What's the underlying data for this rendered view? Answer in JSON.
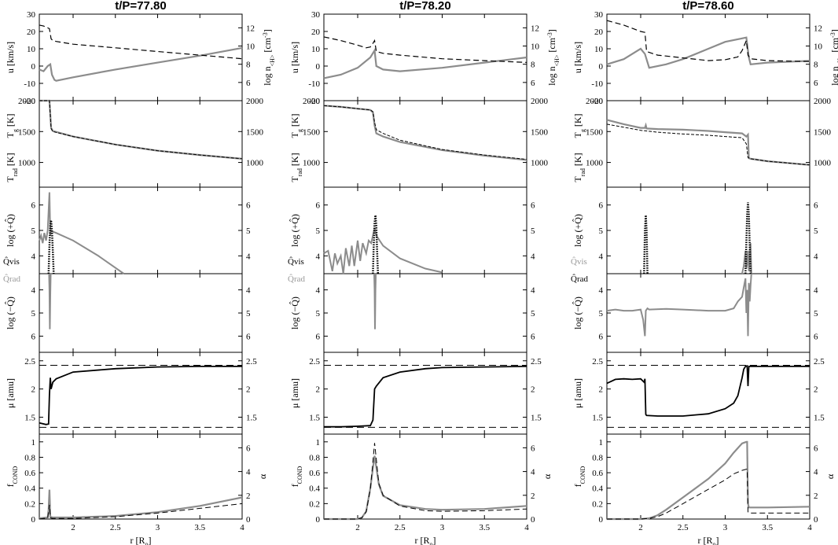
{
  "chart_data": {
    "type": "line",
    "layout": "3 columns x 6 stacked panels, shared x axis per column",
    "x_axis": {
      "label": "r [R",
      "label_sub": "0",
      "label_end": "]",
      "range": [
        1.6,
        4.0
      ],
      "ticks": [
        "2",
        "2.5",
        "3",
        "3.5",
        "4"
      ]
    },
    "rows": [
      {
        "key": "u",
        "left_label": "u [km/s]",
        "left_range": [
          -20,
          30
        ],
        "left_ticks": [
          "30",
          "20",
          "10",
          "0",
          "-10",
          "-20"
        ],
        "right_label": "log n",
        "right_label_sub": "<H>",
        "right_label_end": " [cm",
        "right_label_sup": "-3",
        "right_label_close": "]",
        "right_range": [
          4,
          13.5
        ],
        "right_ticks": [
          "12",
          "10",
          "8",
          "6"
        ]
      },
      {
        "key": "T",
        "top_label": "T",
        "top_label_sub": "g",
        "top_label_end": " [K]",
        "bottom_label": "T",
        "bottom_label_sub": "rad",
        "bottom_label_end": " [K]",
        "left_range": [
          600,
          2000
        ],
        "left_ticks": [
          "2000",
          "1500",
          "1000"
        ],
        "right_ticks": [
          "2000",
          "1500",
          "1000"
        ]
      },
      {
        "key": "qpos",
        "left_label": "log (+Q̂)",
        "left_range": [
          3.3,
          6.7
        ],
        "left_ticks": [
          "6",
          "5",
          "4"
        ],
        "right_ticks": [
          "6",
          "5",
          "4"
        ],
        "corner_label": "Q̂vis"
      },
      {
        "key": "qneg",
        "left_label": "log (−Q̂)",
        "left_range": [
          3.3,
          6.7
        ],
        "inverted": true,
        "left_ticks": [
          "4",
          "5",
          "6"
        ],
        "right_ticks": [
          "4",
          "5",
          "6"
        ],
        "corner_label": "Q̂rad"
      },
      {
        "key": "mu",
        "left_label": "μ [amu]",
        "left_range": [
          1.2,
          2.65
        ],
        "left_ticks": [
          "2.5",
          "2",
          "1.5"
        ],
        "right_ticks": [
          "2.5",
          "2",
          "1.5"
        ]
      },
      {
        "key": "fcond",
        "left_label": "f",
        "left_label_sub": "COND",
        "left_range": [
          0,
          1.1
        ],
        "left_ticks": [
          "1",
          "0.8",
          "0.6",
          "0.4",
          "0.2",
          "0"
        ],
        "right_label": "α",
        "right_range": [
          0,
          7.15
        ],
        "right_ticks": [
          "6",
          "4",
          "2",
          "0"
        ]
      }
    ],
    "columns": [
      {
        "title": "t/P=77.80",
        "legend_colors": {
          "qvis": "#000000",
          "qrad": "#999999"
        },
        "u": {
          "r": [
            1.6,
            1.65,
            1.7,
            1.73,
            1.75,
            1.78,
            1.8,
            2.0,
            2.5,
            3.0,
            3.5,
            4.0
          ],
          "values": [
            -2,
            -3,
            0,
            1,
            -5,
            -8,
            -8.5,
            -6.5,
            -2,
            2,
            6,
            10.5
          ]
        },
        "n": {
          "r": [
            1.6,
            1.65,
            1.7,
            1.72,
            1.74,
            1.76,
            1.8,
            2.0,
            2.5,
            3.0,
            3.5,
            4.0
          ],
          "values": [
            12.3,
            12.2,
            12.0,
            11.9,
            10.8,
            10.6,
            10.5,
            10.2,
            9.8,
            9.4,
            9.0,
            8.6
          ]
        },
        "Tg": {
          "r": [
            1.6,
            1.72,
            1.74,
            1.76,
            2.0,
            2.5,
            3.0,
            3.5,
            4.0
          ],
          "values": [
            2000,
            2000,
            1560,
            1510,
            1420,
            1290,
            1190,
            1120,
            1060
          ]
        },
        "Trad": {
          "r": [
            1.6,
            1.72,
            1.74,
            1.76,
            2.0,
            2.5,
            3.0,
            3.5,
            4.0
          ],
          "values": [
            2000,
            2000,
            1550,
            1500,
            1420,
            1290,
            1190,
            1120,
            1060
          ]
        },
        "qvis": {
          "r": [
            1.71,
            1.72,
            1.73,
            1.74,
            1.75,
            1.76,
            1.77
          ],
          "values": [
            3.3,
            4.4,
            5.2,
            5.4,
            5.0,
            4.2,
            3.3
          ]
        },
        "qpos_grey": {
          "r": [
            1.6,
            1.62,
            1.64,
            1.66,
            1.68,
            1.7,
            1.72,
            1.73,
            1.74,
            1.76,
            1.8,
            2.0,
            2.3,
            2.6
          ],
          "values": [
            4.6,
            4.8,
            4.5,
            4.9,
            4.6,
            5.0,
            6.5,
            4.8,
            5.0,
            4.95,
            4.9,
            4.6,
            4.0,
            3.3
          ]
        },
        "qneg": {
          "r": [
            1.715,
            1.72,
            1.725,
            1.73,
            1.735
          ],
          "values": [
            3.3,
            4.0,
            5.7,
            4.2,
            3.3
          ]
        },
        "mu": {
          "r": [
            1.6,
            1.68,
            1.71,
            1.72,
            1.73,
            1.74,
            1.76,
            1.8,
            2.0,
            2.5,
            3.0,
            3.5,
            4.0
          ],
          "values": [
            1.4,
            1.37,
            1.38,
            1.9,
            2.2,
            2.0,
            2.12,
            2.18,
            2.3,
            2.36,
            2.39,
            2.4,
            2.4
          ]
        },
        "mu_lines": [
          2.42,
          1.32
        ],
        "fcond": {
          "r": [
            1.6,
            1.7,
            1.71,
            1.72,
            1.73,
            1.76,
            2.0,
            2.5,
            3.0,
            3.5,
            4.0
          ],
          "values": [
            0.01,
            0.02,
            0.12,
            0.38,
            0.03,
            0.02,
            0.02,
            0.04,
            0.09,
            0.17,
            0.28
          ]
        },
        "alpha": {
          "r": [
            1.6,
            1.7,
            1.71,
            1.72,
            1.73,
            1.76,
            2.0,
            2.5,
            3.0,
            3.5,
            4.0
          ],
          "values": [
            0,
            0.1,
            0.6,
            1.2,
            0.1,
            0.05,
            0.05,
            0.2,
            0.5,
            0.9,
            1.3
          ]
        }
      },
      {
        "title": "t/P=78.20",
        "legend_colors": {
          "qvis": "#000000",
          "qrad": "#999999"
        },
        "u": {
          "r": [
            1.6,
            1.8,
            2.0,
            2.15,
            2.2,
            2.22,
            2.3,
            2.5,
            3.0,
            3.5,
            4.0
          ],
          "values": [
            -7,
            -5,
            -1,
            5,
            9,
            0,
            -2,
            -3,
            -1,
            2,
            5
          ]
        },
        "n": {
          "r": [
            1.6,
            1.8,
            2.0,
            2.1,
            2.15,
            2.18,
            2.2,
            2.22,
            2.3,
            2.5,
            3.0,
            3.5,
            4.0
          ],
          "values": [
            11.0,
            10.6,
            10.1,
            9.8,
            9.9,
            10.3,
            10.6,
            9.4,
            9.2,
            9.0,
            8.6,
            8.4,
            8.2
          ]
        },
        "Tg": {
          "r": [
            1.6,
            1.8,
            2.0,
            2.15,
            2.18,
            2.2,
            2.22,
            2.3,
            2.5,
            3.0,
            3.5,
            4.0
          ],
          "values": [
            1920,
            1900,
            1870,
            1850,
            1810,
            1600,
            1470,
            1420,
            1330,
            1200,
            1110,
            1040
          ]
        },
        "Trad": {
          "r": [
            1.6,
            1.8,
            2.0,
            2.15,
            2.18,
            2.2,
            2.22,
            2.3,
            2.5,
            3.0,
            3.5,
            4.0
          ],
          "values": [
            1920,
            1900,
            1870,
            1850,
            1820,
            1650,
            1530,
            1470,
            1360,
            1210,
            1120,
            1050
          ]
        },
        "qvis": {
          "r": [
            2.18,
            2.19,
            2.2,
            2.21,
            2.22,
            2.23,
            2.24
          ],
          "values": [
            3.3,
            4.4,
            5.3,
            5.6,
            5.2,
            4.2,
            3.3
          ]
        },
        "qpos_grey": {
          "r": [
            1.6,
            1.65,
            1.7,
            1.73,
            1.76,
            1.8,
            1.83,
            1.86,
            1.9,
            1.93,
            1.96,
            2.0,
            2.03,
            2.06,
            2.1,
            2.13,
            2.16,
            2.2,
            2.22,
            2.3,
            2.5,
            2.8,
            3.0
          ],
          "values": [
            4.1,
            4.2,
            3.4,
            4.1,
            3.7,
            4.0,
            3.3,
            4.3,
            3.6,
            4.4,
            3.6,
            4.6,
            3.8,
            4.5,
            4.1,
            4.6,
            4.5,
            5.1,
            4.8,
            4.4,
            3.9,
            3.5,
            3.35
          ]
        },
        "qneg": {
          "r": [
            2.195,
            2.2,
            2.205,
            2.21,
            2.215
          ],
          "values": [
            3.3,
            4.0,
            5.7,
            4.0,
            3.3
          ]
        },
        "mu": {
          "r": [
            1.6,
            1.8,
            2.0,
            2.15,
            2.18,
            2.2,
            2.22,
            2.3,
            2.5,
            2.8,
            3.0,
            3.5,
            4.0
          ],
          "values": [
            1.33,
            1.33,
            1.34,
            1.35,
            1.45,
            2.0,
            2.05,
            2.2,
            2.3,
            2.36,
            2.38,
            2.39,
            2.4
          ]
        },
        "mu_lines": [
          2.42,
          1.32
        ],
        "fcond": {
          "r": [
            1.6,
            2.0,
            2.05,
            2.1,
            2.15,
            2.2,
            2.25,
            2.3,
            2.5,
            2.8,
            3.0,
            3.5,
            4.0
          ],
          "values": [
            0,
            0.0,
            0.02,
            0.1,
            0.4,
            0.82,
            0.45,
            0.3,
            0.18,
            0.13,
            0.12,
            0.13,
            0.17
          ]
        },
        "alpha": {
          "r": [
            1.6,
            2.0,
            2.05,
            2.1,
            2.15,
            2.2,
            2.25,
            2.3,
            2.5,
            2.8,
            3.0,
            3.5,
            4.0
          ],
          "values": [
            0,
            0.0,
            0.1,
            0.6,
            2.5,
            6.4,
            3.0,
            2.0,
            1.1,
            0.7,
            0.65,
            0.7,
            0.85
          ]
        }
      },
      {
        "title": "t/P=78.60",
        "legend_colors": {
          "qvis": "#999999",
          "qrad": "#000000"
        },
        "u": {
          "r": [
            1.6,
            1.8,
            2.0,
            2.05,
            2.1,
            2.3,
            2.5,
            2.8,
            3.0,
            3.2,
            3.25,
            3.28,
            3.3,
            3.5,
            4.0
          ],
          "values": [
            1,
            4,
            10,
            7,
            -1,
            1,
            4,
            10,
            14,
            16,
            16.5,
            5,
            1,
            2,
            3
          ]
        },
        "n": {
          "r": [
            1.6,
            1.8,
            2.0,
            2.05,
            2.07,
            2.2,
            2.5,
            2.8,
            3.0,
            3.15,
            3.2,
            3.25,
            3.27,
            3.3,
            3.5,
            4.0
          ],
          "values": [
            12.8,
            12.3,
            11.6,
            11.5,
            9.4,
            9.0,
            8.7,
            8.4,
            8.5,
            8.8,
            9.5,
            10.6,
            9.0,
            8.6,
            8.4,
            8.3
          ]
        },
        "Tg": {
          "r": [
            1.6,
            1.8,
            2.0,
            2.05,
            2.06,
            2.07,
            2.2,
            2.5,
            2.8,
            3.0,
            3.2,
            3.25,
            3.27,
            3.28,
            3.3,
            3.5,
            4.0
          ],
          "values": [
            1690,
            1620,
            1560,
            1560,
            1600,
            1550,
            1540,
            1530,
            1510,
            1490,
            1470,
            1420,
            1450,
            1070,
            1060,
            1020,
            960
          ]
        },
        "Trad": {
          "r": [
            1.6,
            1.8,
            2.0,
            2.2,
            2.5,
            2.8,
            3.0,
            3.2,
            3.25,
            3.27,
            3.3,
            3.5,
            4.0
          ],
          "values": [
            1620,
            1570,
            1520,
            1490,
            1460,
            1440,
            1420,
            1400,
            1300,
            1080,
            1060,
            1020,
            960
          ]
        },
        "qvis": {
          "r": [
            2.04,
            2.05,
            2.06,
            2.07,
            2.08
          ],
          "values": [
            3.3,
            5.0,
            5.6,
            5.0,
            3.3
          ]
        },
        "qvis2": {
          "r": [
            3.24,
            3.25,
            3.26,
            3.27,
            3.28,
            3.29,
            3.3
          ],
          "values": [
            3.3,
            4.5,
            5.6,
            6.1,
            5.6,
            4.4,
            3.3
          ]
        },
        "qpos_grey": {
          "r": [
            3.2,
            3.22,
            3.24,
            3.25,
            3.26,
            3.27,
            3.28,
            3.29,
            3.3,
            3.31
          ],
          "values": [
            3.3,
            3.6,
            4.2,
            3.5,
            3.7,
            4.2,
            3.4,
            3.9,
            4.5,
            3.3
          ]
        },
        "qneg": {
          "r": [
            1.6,
            1.7,
            1.8,
            1.9,
            2.0,
            2.03,
            2.05,
            2.06,
            2.08,
            2.1,
            2.3,
            2.5,
            2.8,
            3.0,
            3.1,
            3.15,
            3.2,
            3.22,
            3.24,
            3.25,
            3.26,
            3.27,
            3.28,
            3.29,
            3.3,
            3.31
          ],
          "values": [
            4.9,
            4.85,
            4.9,
            4.9,
            4.85,
            5.3,
            6.0,
            4.9,
            4.8,
            4.85,
            4.82,
            4.85,
            4.9,
            4.9,
            4.8,
            4.5,
            4.3,
            3.9,
            3.5,
            5.0,
            4.0,
            6.0,
            3.7,
            4.5,
            3.8,
            3.3
          ]
        },
        "mu": {
          "r": [
            1.6,
            1.7,
            1.8,
            1.9,
            2.0,
            2.04,
            2.05,
            2.06,
            2.07,
            2.2,
            2.5,
            2.8,
            3.0,
            3.1,
            3.15,
            3.2,
            3.22,
            3.24,
            3.26,
            3.27,
            3.28,
            3.3,
            3.5,
            4.0
          ],
          "values": [
            2.1,
            2.17,
            2.18,
            2.17,
            2.18,
            2.12,
            2.18,
            1.55,
            1.53,
            1.52,
            1.52,
            1.56,
            1.65,
            1.75,
            1.88,
            2.2,
            2.35,
            2.4,
            2.41,
            2.05,
            2.4,
            2.4,
            2.4,
            2.4
          ]
        },
        "mu_lines": [
          2.42,
          1.32
        ],
        "fcond": {
          "r": [
            1.6,
            2.0,
            2.1,
            2.2,
            2.3,
            2.5,
            2.8,
            3.0,
            3.1,
            3.2,
            3.25,
            3.26,
            3.27,
            3.28,
            3.3,
            3.5,
            4.0
          ],
          "values": [
            0,
            0.0,
            0.01,
            0.05,
            0.12,
            0.28,
            0.52,
            0.72,
            0.86,
            0.98,
            1.0,
            1.0,
            0.2,
            0.15,
            0.15,
            0.15,
            0.16
          ]
        },
        "alpha": {
          "r": [
            1.6,
            2.0,
            2.1,
            2.2,
            2.3,
            2.5,
            2.8,
            3.0,
            3.1,
            3.2,
            3.25,
            3.26,
            3.27,
            3.28,
            3.3,
            3.5,
            4.0
          ],
          "values": [
            0,
            0.0,
            0.05,
            0.2,
            0.5,
            1.3,
            2.5,
            3.3,
            3.8,
            4.1,
            4.2,
            4.2,
            0.6,
            0.5,
            0.5,
            0.5,
            0.5
          ]
        }
      }
    ]
  }
}
